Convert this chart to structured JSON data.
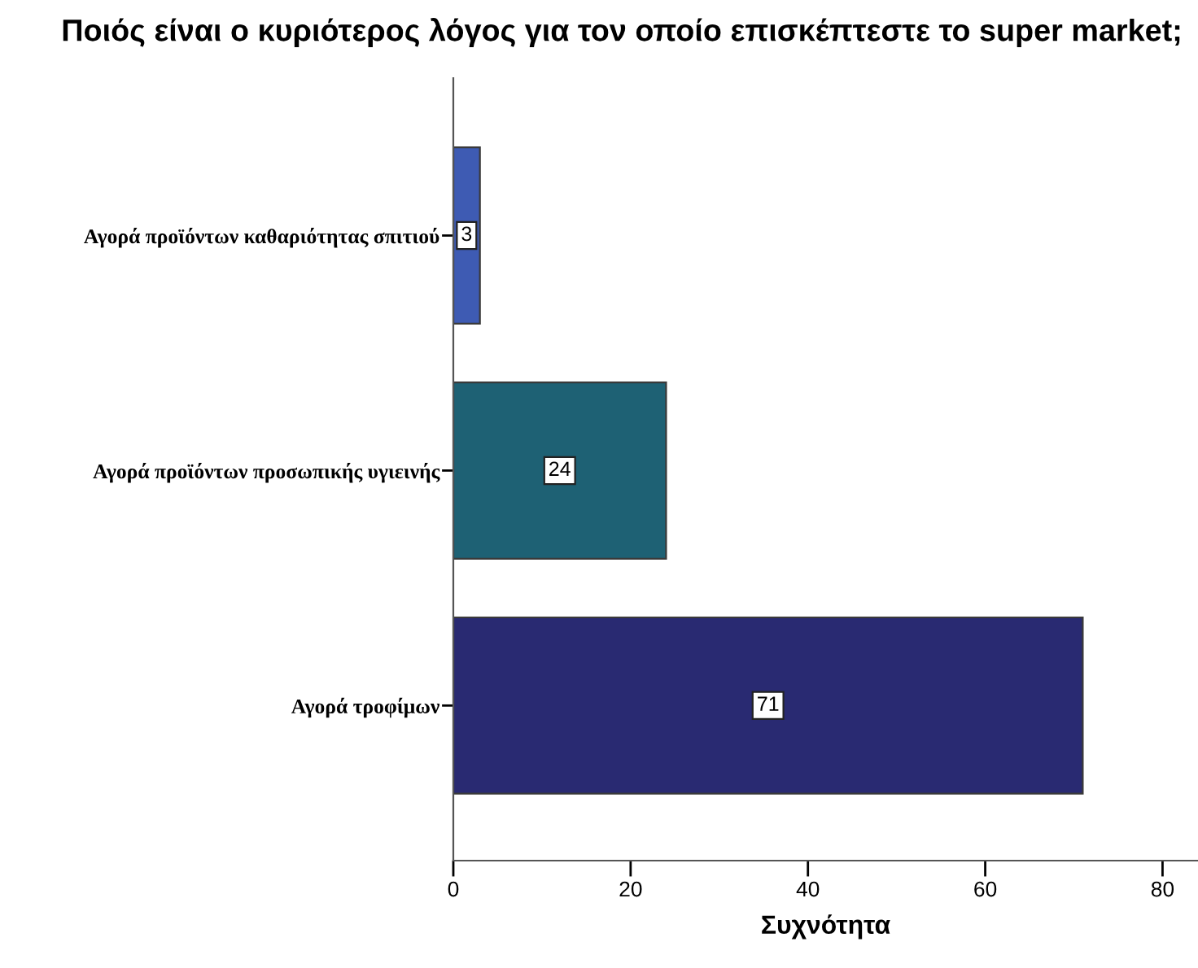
{
  "chart_data": {
    "type": "bar",
    "orientation": "horizontal",
    "title": "Ποιός είναι ο κυριότερος λόγος για τον οποίο επισκέπτεστε το super market;",
    "xlabel": "Συχνότητα",
    "categories": [
      "Αγορά προϊόντων καθαριότητας σπιτιού",
      "Αγορά προϊόντων προσωπικής υγιεινής",
      "Αγορά τροφίμων"
    ],
    "values": [
      3,
      24,
      71
    ],
    "colors": [
      "#3e5bb3",
      "#1e6174",
      "#292a72"
    ],
    "xlim": [
      0,
      84
    ],
    "xticks": [
      0,
      20,
      40,
      60,
      80
    ],
    "data_labels": true
  }
}
